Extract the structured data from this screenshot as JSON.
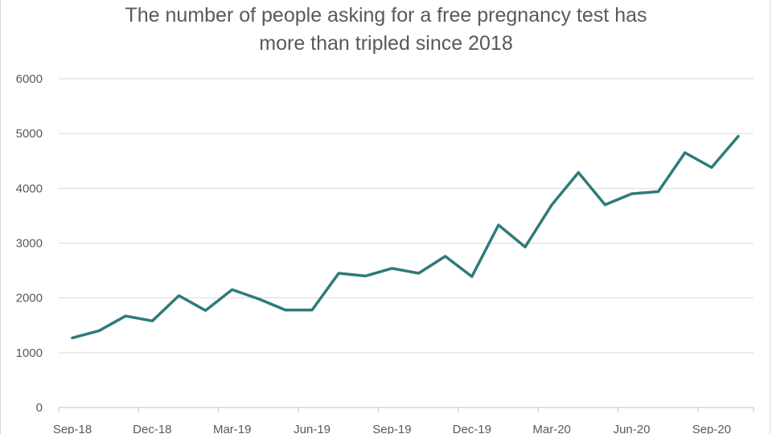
{
  "chart_data": {
    "type": "line",
    "title_lines": [
      "The number of people asking for a free pregnancy test has",
      "more than tripled since 2018"
    ],
    "xlabel": "",
    "ylabel": "",
    "ylim": [
      0,
      6000
    ],
    "yticks": [
      0,
      1000,
      2000,
      3000,
      4000,
      5000,
      6000
    ],
    "xtick_labels": [
      "Sep-18",
      "Dec-18",
      "Mar-19",
      "Jun-19",
      "Sep-19",
      "Dec-19",
      "Mar-20",
      "Jun-20",
      "Sep-20"
    ],
    "grid": true,
    "legend": "none",
    "line_color": "#2e7b7a",
    "series": [
      {
        "x": [
          "Sep-18",
          "Oct-18",
          "Nov-18",
          "Dec-18",
          "Jan-19",
          "Feb-19",
          "Mar-19",
          "Apr-19",
          "May-19",
          "Jun-19",
          "Jul-19",
          "Aug-19",
          "Sep-19",
          "Oct-19",
          "Nov-19",
          "Dec-19",
          "Jan-20",
          "Feb-20",
          "Mar-20",
          "Apr-20",
          "May-20",
          "Jun-20",
          "Jul-20",
          "Aug-20",
          "Sep-20",
          "Oct-20"
        ],
        "values": [
          1270,
          1400,
          1670,
          1580,
          2040,
          1770,
          2150,
          1980,
          1780,
          1780,
          2450,
          2400,
          2540,
          2450,
          2760,
          2390,
          3330,
          2930,
          3700,
          4290,
          3700,
          3900,
          3940,
          4650,
          4380,
          4950
        ]
      }
    ]
  }
}
